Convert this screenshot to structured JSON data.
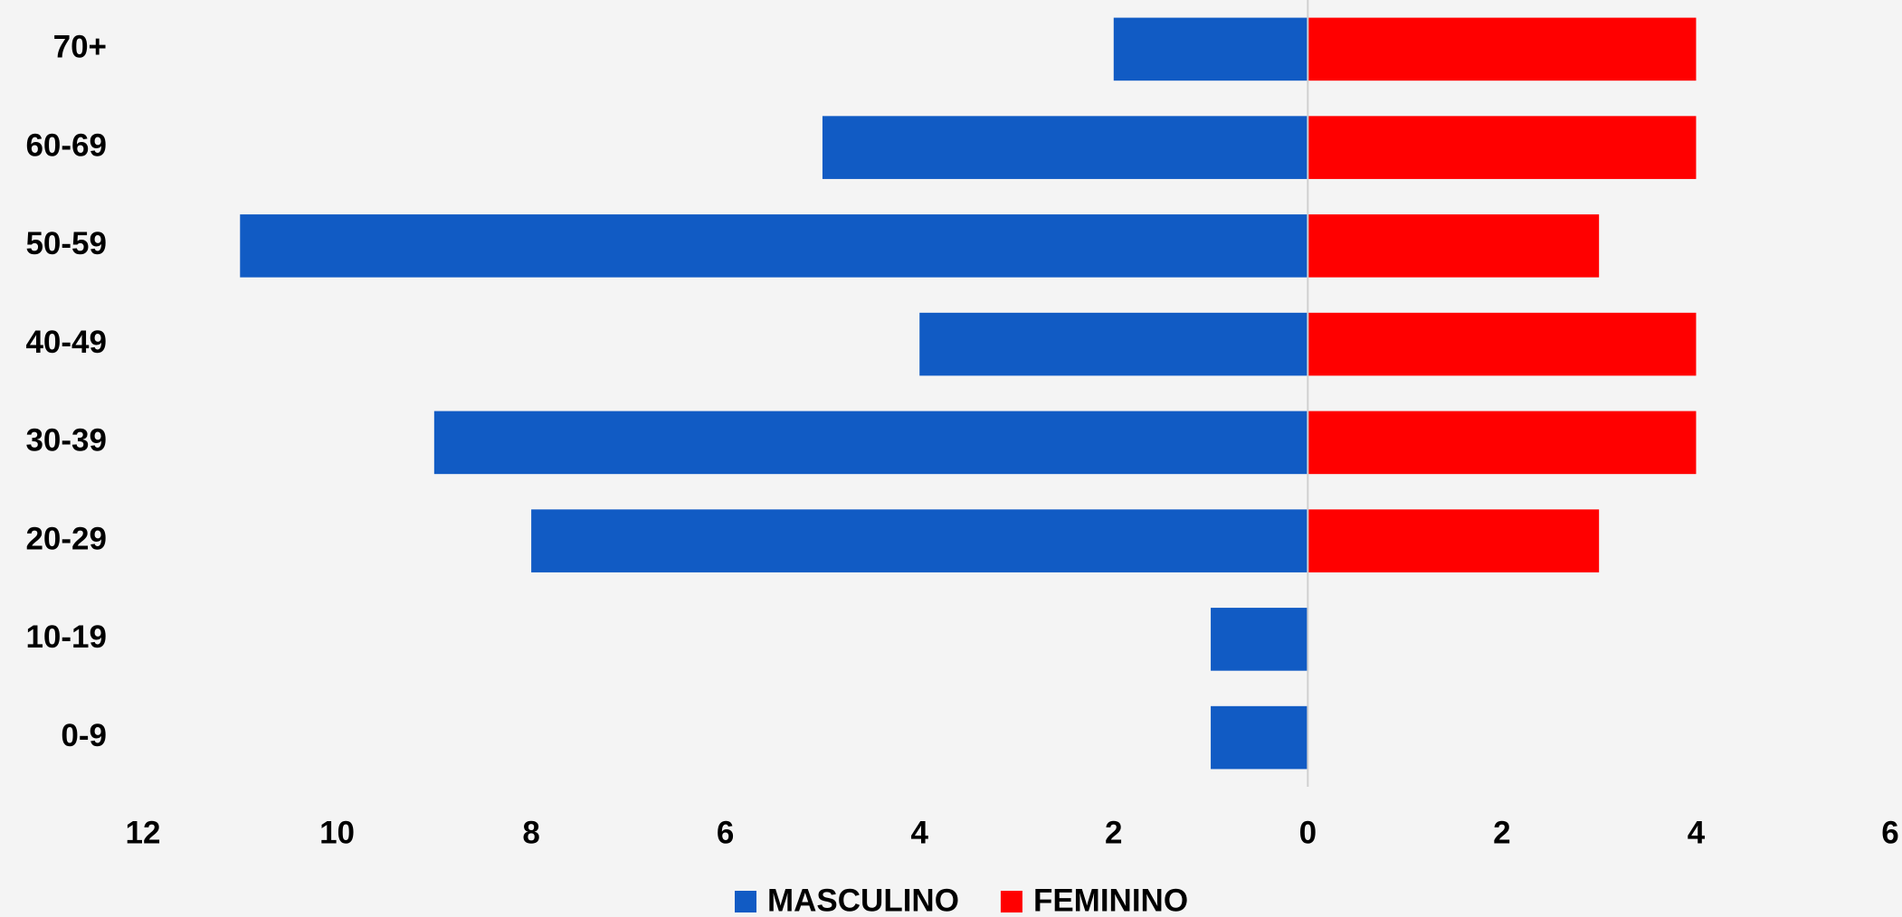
{
  "chart_data": {
    "type": "bar",
    "orientation": "horizontal",
    "stacked": false,
    "categories": [
      "0-9",
      "10-19",
      "20-29",
      "30-39",
      "40-49",
      "50-59",
      "60-69",
      "70+"
    ],
    "series": [
      {
        "name": "MASCULINO",
        "color": "#115bc4",
        "values": [
          -1,
          -1,
          -8,
          -9,
          -4,
          -11,
          -5,
          -2
        ]
      },
      {
        "name": "FEMININO",
        "color": "#ff0000",
        "values": [
          0,
          0,
          3,
          4,
          4,
          3,
          4,
          4
        ]
      }
    ],
    "xlim": [
      -12,
      6
    ],
    "xticks": [
      {
        "value": -12,
        "label": "12"
      },
      {
        "value": -10,
        "label": "10"
      },
      {
        "value": -8,
        "label": "8"
      },
      {
        "value": -6,
        "label": "6"
      },
      {
        "value": -4,
        "label": "4"
      },
      {
        "value": -2,
        "label": "2"
      },
      0,
      2,
      4,
      6
    ],
    "legend": "bottom",
    "grid": false
  }
}
